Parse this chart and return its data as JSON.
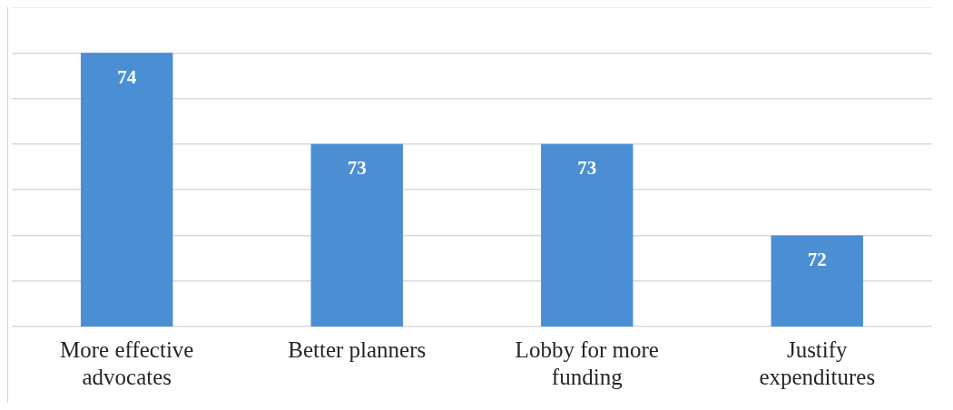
{
  "chart_data": {
    "type": "bar",
    "categories": [
      "More effective advocates",
      "Better planners",
      "Lobby for more funding",
      "Justify expenditures"
    ],
    "values": [
      74,
      73,
      73,
      72
    ],
    "color": "#4a8ed4",
    "ylim": [
      71,
      74.5
    ],
    "yticks": [
      {
        "value": 71,
        "label": null
      },
      {
        "value": 71.5,
        "label": null
      },
      {
        "value": 72,
        "label": null
      },
      {
        "value": 72.5,
        "label": null
      },
      {
        "value": 73,
        "label": null
      },
      {
        "value": 73.5,
        "label": null
      },
      {
        "value": 74,
        "label": null
      },
      {
        "value": 74.5,
        "label": null
      }
    ],
    "grid": "y",
    "tick_labels": "x",
    "data_labels": true
  }
}
